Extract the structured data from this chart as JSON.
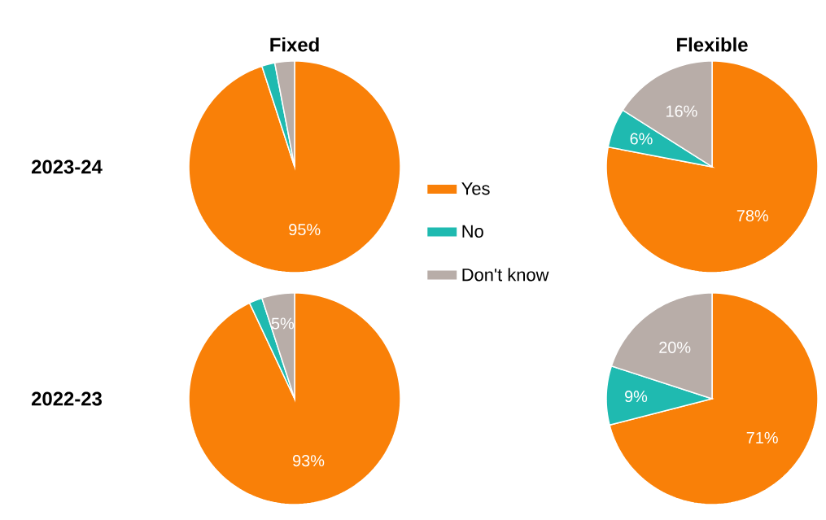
{
  "chart_data": [
    {
      "type": "pie",
      "title": "Fixed",
      "ylabel": "2023-24",
      "categories": [
        "Yes",
        "No",
        "Don't know"
      ],
      "values": [
        95,
        2,
        3
      ],
      "colors": [
        "#f98008",
        "#1fbab0",
        "#b8ada8"
      ],
      "value_labels": [
        "95%",
        null,
        null
      ],
      "legend": "right"
    },
    {
      "type": "pie",
      "title": "Flexible",
      "values": [
        78,
        6,
        16
      ],
      "colors": [
        "#f98008",
        "#1fbab0",
        "#b8ada8"
      ],
      "value_labels": [
        "78%",
        "6%",
        "16%"
      ]
    },
    {
      "type": "pie",
      "ylabel": "2022-23",
      "values": [
        93,
        2,
        5
      ],
      "colors": [
        "#f98008",
        "#1fbab0",
        "#b8ada8"
      ],
      "value_labels": [
        "93%",
        null,
        "5%"
      ]
    },
    {
      "type": "pie",
      "values": [
        71,
        9,
        20
      ],
      "colors": [
        "#f98008",
        "#1fbab0",
        "#b8ada8"
      ],
      "value_labels": [
        "71%",
        "9%",
        "20%"
      ]
    }
  ]
}
